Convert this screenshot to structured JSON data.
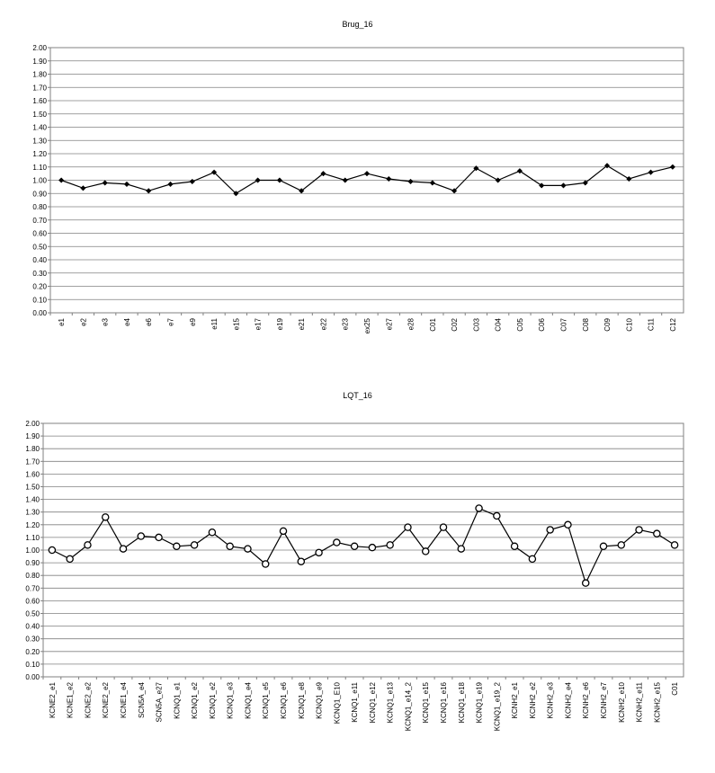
{
  "chart_data": [
    {
      "type": "line",
      "title": "Brug_16",
      "marker": "diamond",
      "line_color": "#000000",
      "ylim": [
        0,
        2
      ],
      "ytick_step": 0.1,
      "grid": true,
      "categories": [
        "e1",
        "e2",
        "e3",
        "e4",
        "e6",
        "e7",
        "e9",
        "e11",
        "e15",
        "e17",
        "e19",
        "e21",
        "e22",
        "e23",
        "ex25",
        "e27",
        "e28",
        "C01",
        "C02",
        "C03",
        "C04",
        "C05",
        "C06",
        "C07",
        "C08",
        "C09",
        "C10",
        "C11",
        "C12"
      ],
      "values": [
        1.0,
        0.94,
        0.98,
        0.97,
        0.92,
        0.97,
        0.99,
        1.06,
        0.9,
        1.0,
        1.0,
        0.92,
        1.05,
        1.0,
        1.05,
        1.01,
        0.99,
        0.98,
        0.92,
        1.09,
        1.0,
        1.07,
        0.96,
        0.96,
        0.98,
        1.11,
        1.01,
        1.06,
        1.1
      ]
    },
    {
      "type": "line",
      "title": "LQT_16",
      "marker": "circle",
      "line_color": "#000000",
      "ylim": [
        0,
        2
      ],
      "ytick_step": 0.1,
      "grid": true,
      "categories": [
        "KCNE2_e1",
        "KCNE1_e2",
        "KCNE2_e2",
        "KCNE2_e2",
        "KCNE1_e4",
        "SCN5A_e4",
        "SCN5A_e27",
        "KCNQ1_e1",
        "KCNQ1_e2",
        "KCNQ1_e2",
        "KCNQ1_e3",
        "KCNQ1_e4",
        "KCNQ1_e5",
        "KCNQ1_e6",
        "KCNQ1_e8",
        "KCNQ1_e9",
        "KCNQ1_E10",
        "KCNQ1_e11",
        "KCNQ1_e12",
        "KCNQ1_e13",
        "KCNQ1_e14_2",
        "KCNQ1_e15",
        "KCNQ1_e16",
        "KCNQ1_e18",
        "KCNQ1_e19",
        "KCNQ1_e19_2",
        "KCNH2_e1",
        "KCNH2_e2",
        "KCNH2_e3",
        "KCNH2_e4",
        "KCNH2_e6",
        "KCNH2_e7",
        "KCNH2_e10",
        "KCNH2_e11",
        "KCNH2_e15",
        "C01"
      ],
      "values": [
        1.0,
        0.93,
        1.04,
        1.26,
        1.01,
        1.11,
        1.1,
        1.03,
        1.04,
        1.14,
        1.03,
        1.01,
        0.89,
        1.15,
        0.91,
        0.98,
        1.06,
        1.03,
        1.02,
        1.04,
        1.18,
        0.99,
        1.18,
        1.01,
        1.33,
        1.27,
        1.03,
        0.93,
        1.16,
        1.2,
        0.74,
        1.03,
        1.04,
        1.16,
        1.13,
        1.04
      ]
    }
  ]
}
